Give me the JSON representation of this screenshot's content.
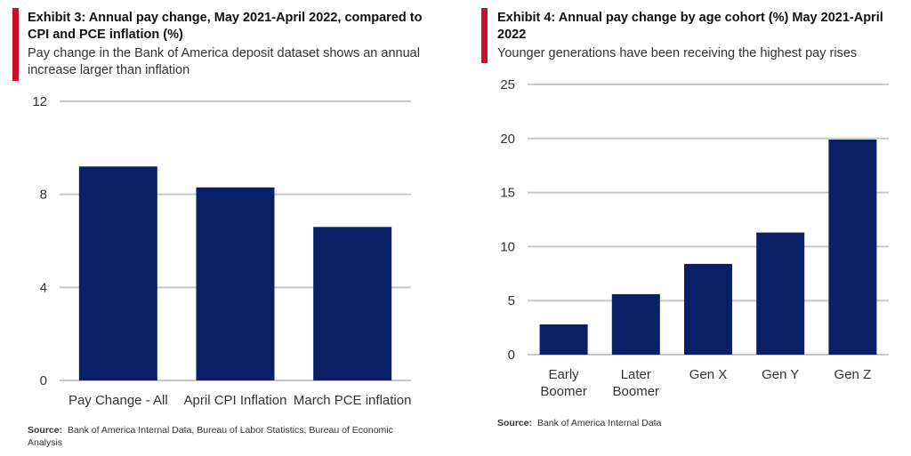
{
  "exhibits": [
    {
      "title": "Exhibit 3: Annual pay  change, May 2021-April 2022, compared to CPI and PCE inflation (%)",
      "subtitle": "Pay change in the Bank of America deposit dataset shows an annual increase larger than inflation",
      "source_label": "Source:",
      "source_text": "Bank of America Internal Data, Bureau of Labor Statistics, Bureau of Economic Analysis"
    },
    {
      "title": "Exhibit 4: Annual pay change by age cohort (%) May 2021-April 2022",
      "subtitle": "Younger generations have been receiving the highest pay rises",
      "source_label": "Source:",
      "source_text": "Bank of America Internal Data"
    }
  ],
  "chart_data": [
    {
      "type": "bar",
      "categories": [
        "Pay Change - All",
        "April CPI Inflation",
        "March PCE inflation"
      ],
      "values": [
        9.2,
        8.3,
        6.6
      ],
      "ylim": [
        0,
        12
      ],
      "yticks": [
        "0",
        "4",
        "8",
        "12"
      ],
      "grid": true,
      "bar_color": "#0b1f66"
    },
    {
      "type": "bar",
      "categories": [
        [
          "Early",
          "Boomer"
        ],
        [
          "Later",
          "Boomer"
        ],
        [
          "Gen X"
        ],
        [
          "Gen Y"
        ],
        [
          "Gen Z"
        ]
      ],
      "values": [
        2.8,
        5.6,
        8.4,
        11.3,
        19.9
      ],
      "ylim": [
        0,
        25
      ],
      "yticks": [
        "0",
        "5",
        "10",
        "15",
        "20",
        "25"
      ],
      "grid": true,
      "bar_color": "#0b1f66"
    }
  ]
}
